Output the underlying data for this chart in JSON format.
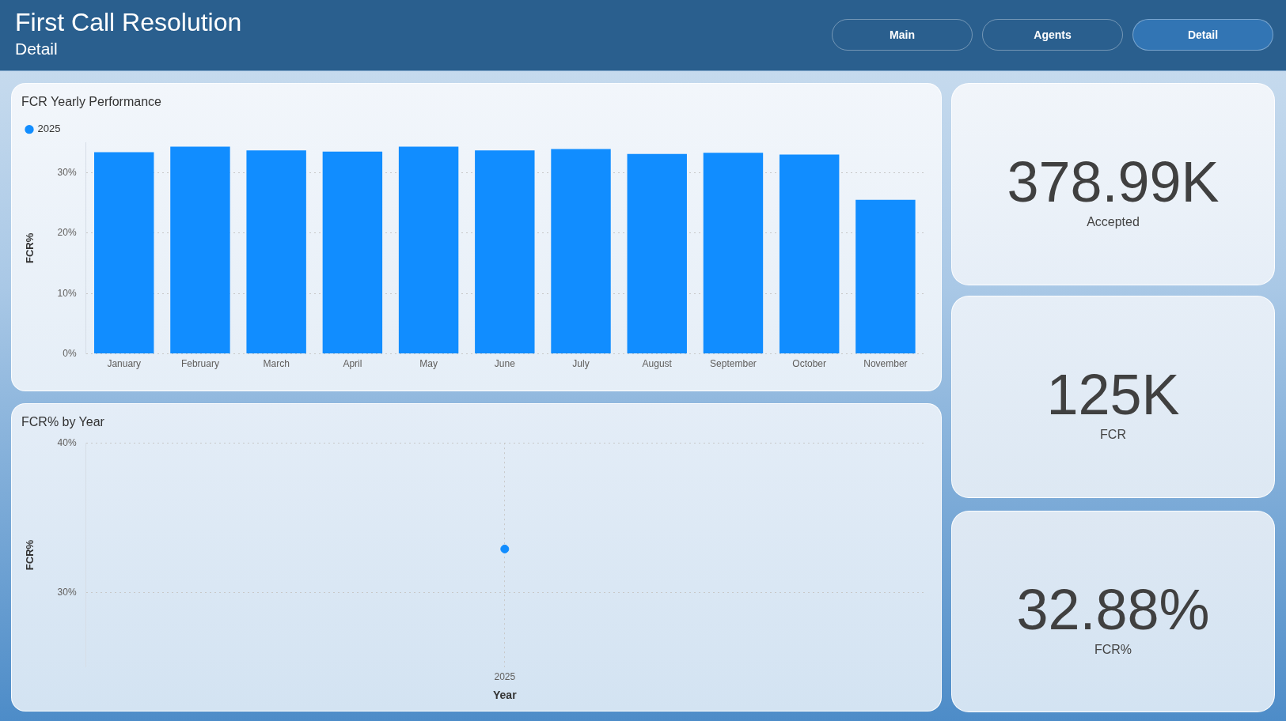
{
  "chart_data": [
    {
      "type": "other",
      "title": "First Call Resolution",
      "subtitle": "Detail",
      "annotations": [
        "Main",
        "Agents",
        "Detail"
      ]
    },
    {
      "type": "bar",
      "title": "FCR Yearly Performance",
      "ylabel": "FCR%",
      "categories": [
        "January",
        "February",
        "March",
        "April",
        "May",
        "June",
        "July",
        "August",
        "September",
        "October",
        "November"
      ],
      "series": [
        {
          "name": "2025",
          "color": "#118dff",
          "values": [
            33.4,
            34.3,
            33.7,
            33.5,
            34.3,
            33.7,
            33.9,
            33.1,
            33.3,
            33.0,
            25.5
          ]
        }
      ],
      "ylim": [
        0,
        35
      ],
      "yticks": [
        {
          "value": 0,
          "label": "0%"
        },
        {
          "value": 10,
          "label": "10%"
        },
        {
          "value": 20,
          "label": "20%"
        },
        {
          "value": 30,
          "label": "30%"
        }
      ],
      "grid": "y",
      "legend": "top left"
    },
    {
      "type": "scatter",
      "title": "FCR% by Year",
      "xlabel": "Year",
      "ylabel": "FCR%",
      "categories": [
        "2025"
      ],
      "values": [
        32.9
      ],
      "color": "#118dff",
      "ylim": [
        25,
        40
      ],
      "yticks": [
        {
          "value": 30,
          "label": "30%"
        },
        {
          "value": 40,
          "label": "40%"
        }
      ],
      "grid": true,
      "marker": "circle"
    },
    {
      "type": "other",
      "annotations": [
        "378.99K",
        "Accepted"
      ]
    },
    {
      "type": "other",
      "annotations": [
        "125K",
        "FCR"
      ]
    },
    {
      "type": "other",
      "annotations": [
        "32.88%",
        "FCR%"
      ]
    }
  ]
}
